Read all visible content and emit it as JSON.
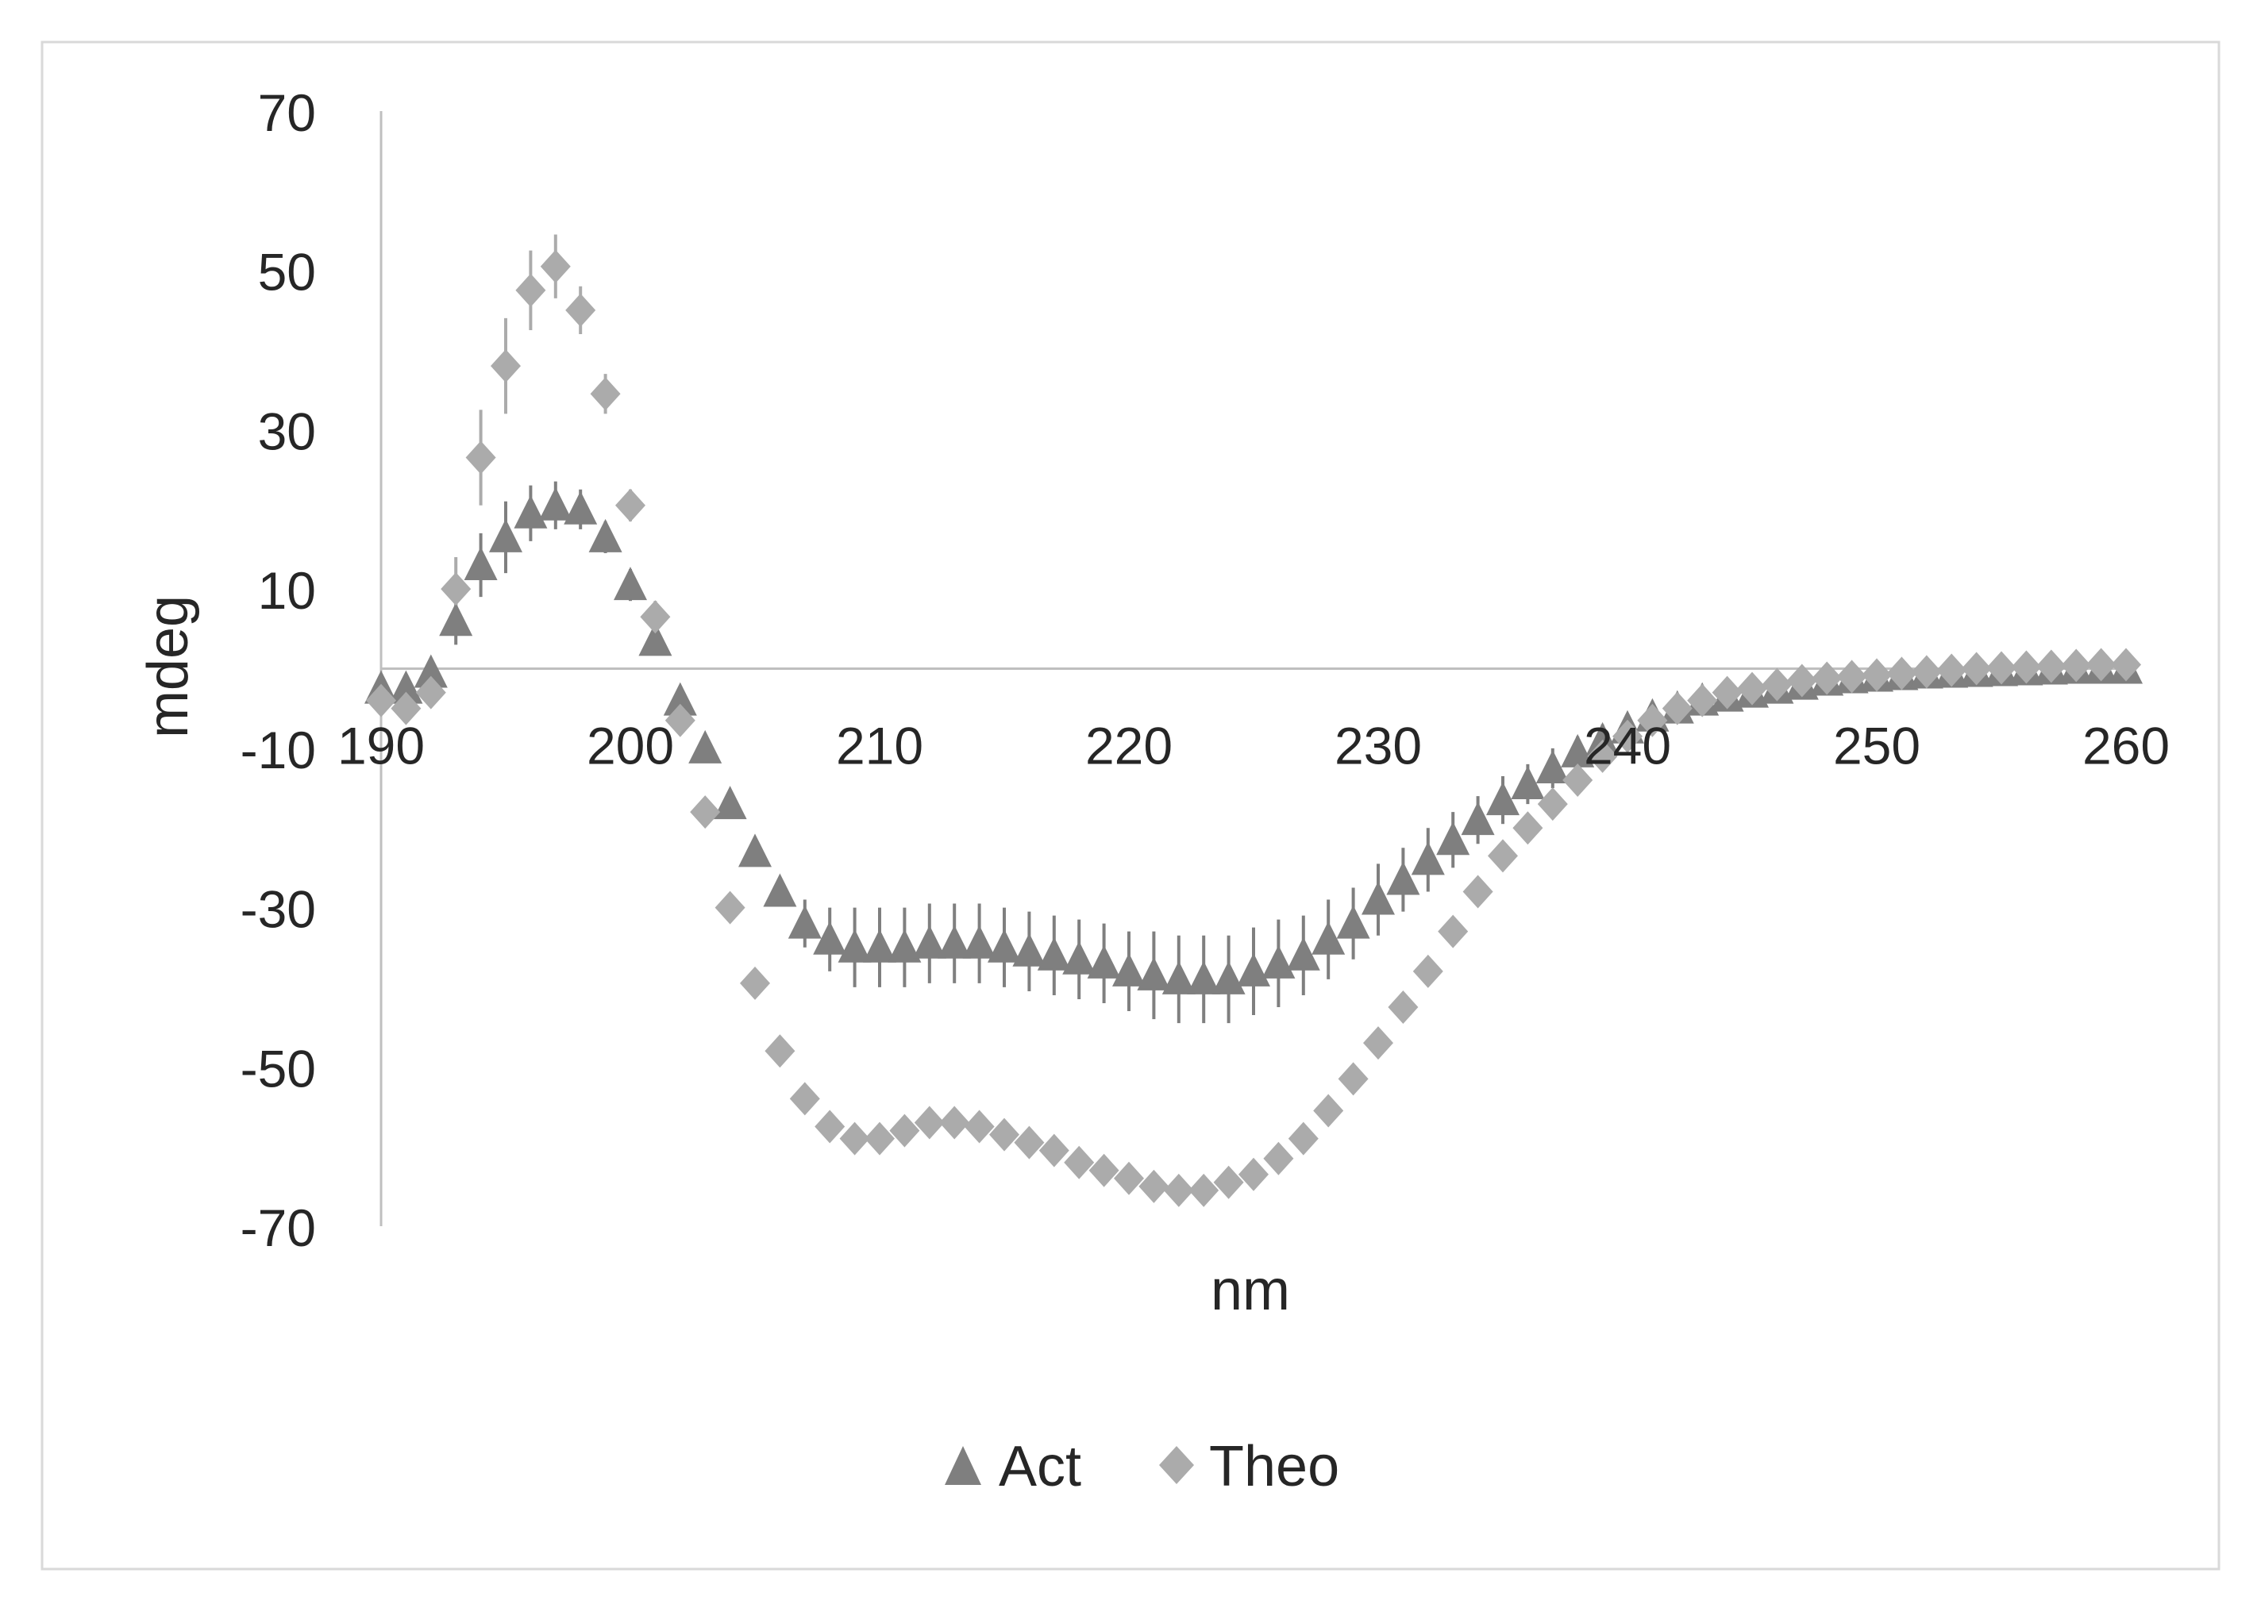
{
  "chart_data": {
    "type": "scatter",
    "title": "",
    "xlabel": "nm",
    "ylabel": "mdeg",
    "xlim": [
      190,
      260
    ],
    "ylim": [
      -70,
      70
    ],
    "x_ticks": [
      190,
      200,
      210,
      220,
      230,
      240,
      250,
      260
    ],
    "y_ticks": [
      70,
      50,
      30,
      10,
      -10,
      -30,
      -50,
      -70
    ],
    "x_tick_labels": [
      "190",
      "200",
      "210",
      "220",
      "230",
      "240",
      "250",
      "260"
    ],
    "y_tick_labels": [
      "70",
      "50",
      "30",
      "10",
      "-10",
      "-30",
      "-50",
      "-70"
    ],
    "legend_position": "bottom",
    "grid": false,
    "x": [
      190,
      191,
      192,
      193,
      194,
      195,
      196,
      197,
      198,
      199,
      200,
      201,
      202,
      203,
      204,
      205,
      206,
      207,
      208,
      209,
      210,
      211,
      212,
      213,
      214,
      215,
      216,
      217,
      218,
      219,
      220,
      221,
      222,
      223,
      224,
      225,
      226,
      227,
      228,
      229,
      230,
      231,
      232,
      233,
      234,
      235,
      236,
      237,
      238,
      239,
      240,
      241,
      242,
      243,
      244,
      245,
      246,
      247,
      248,
      249,
      250,
      251,
      252,
      253,
      254,
      255,
      256,
      257,
      258,
      259,
      260
    ],
    "series": [
      {
        "name": "Act",
        "marker": "triangle",
        "color": "#7f7f7f",
        "values": [
          -2.5,
          -2.5,
          -0.5,
          6,
          13,
          16.5,
          19.5,
          20.5,
          20,
          16.5,
          10.5,
          3.5,
          -4,
          -10,
          -17,
          -23,
          -28,
          -32,
          -34,
          -35,
          -35,
          -35,
          -34.5,
          -34.5,
          -34.5,
          -35,
          -35.5,
          -36,
          -36.5,
          -37,
          -38,
          -38.5,
          -39,
          -39,
          -39,
          -38,
          -37,
          -36,
          -34,
          -32,
          -29,
          -26.5,
          -24,
          -21.5,
          -19,
          -16.5,
          -14.5,
          -12.5,
          -10.5,
          -9,
          -7.5,
          -6,
          -5,
          -4,
          -3.5,
          -3,
          -2.5,
          -2,
          -1.5,
          -1.2,
          -1,
          -0.8,
          -0.6,
          -0.5,
          -0.4,
          -0.3,
          -0.2,
          -0.1,
          0,
          0,
          0
        ],
        "errors": [
          1.5,
          1.5,
          1.5,
          3,
          4,
          4.5,
          3.5,
          3,
          2.5,
          2,
          2,
          1.5,
          1.5,
          1,
          1,
          1,
          1,
          3,
          4,
          5,
          5,
          5,
          5,
          5,
          5,
          5,
          5,
          5,
          5,
          5,
          5,
          5.5,
          5.5,
          5.5,
          5.5,
          5.5,
          5.5,
          5,
          5,
          4.5,
          4.5,
          4,
          4,
          3.5,
          3,
          3,
          2.5,
          2.5,
          2,
          2,
          1.5,
          1.5,
          1,
          1,
          1,
          0.8,
          0.8,
          0.5,
          0.5,
          0.5,
          0.5,
          0.5,
          0.5,
          0.5,
          0.5,
          0.5,
          0.5,
          0.5,
          0.5,
          0.5,
          0.5
        ]
      },
      {
        "name": "Theo",
        "marker": "diamond",
        "color": "#ababab",
        "values": [
          -4,
          -5,
          -3,
          10,
          26.5,
          38,
          47.5,
          50.5,
          45,
          34.5,
          20.5,
          6.5,
          -6.5,
          -18,
          -30,
          -39.5,
          -48,
          -54,
          -57.5,
          -59,
          -59,
          -58,
          -57,
          -57,
          -57.5,
          -58.5,
          -59.5,
          -60.5,
          -62,
          -63,
          -64,
          -65,
          -65.5,
          -65.5,
          -64.5,
          -63.5,
          -61.5,
          -59,
          -55.5,
          -51.5,
          -47,
          -42.5,
          -38,
          -33,
          -28,
          -23.5,
          -20,
          -17,
          -14,
          -11,
          -8.5,
          -6.5,
          -5,
          -4,
          -3,
          -2.5,
          -2,
          -1.5,
          -1.2,
          -1,
          -0.8,
          -0.6,
          -0.4,
          -0.2,
          0,
          0.1,
          0.2,
          0.3,
          0.4,
          0.5,
          0.5
        ],
        "errors": [
          1,
          1,
          1.5,
          4,
          6,
          6,
          5,
          4,
          3,
          2.5,
          2,
          2,
          1.5,
          1,
          1,
          1,
          1,
          1,
          1,
          1,
          1,
          1,
          1,
          1,
          1,
          1,
          1,
          1,
          1,
          1,
          1,
          1,
          1,
          1,
          1,
          1,
          1,
          1,
          1,
          1,
          1,
          1,
          1,
          1,
          1,
          1,
          1,
          1,
          1,
          1,
          1,
          1,
          0.5,
          0.5,
          0.5,
          0.5,
          0.5,
          0.5,
          0.5,
          0.5,
          0.5,
          0.5,
          0.5,
          0.5,
          0.5,
          0.5,
          0.5,
          0.5,
          0.5,
          0.5,
          0.5
        ]
      }
    ]
  },
  "colors": {
    "axis": "#bfbfbf",
    "text": "#262626",
    "frame": "#d9d9d9",
    "act": "#7f7f7f",
    "theo": "#ababab"
  }
}
